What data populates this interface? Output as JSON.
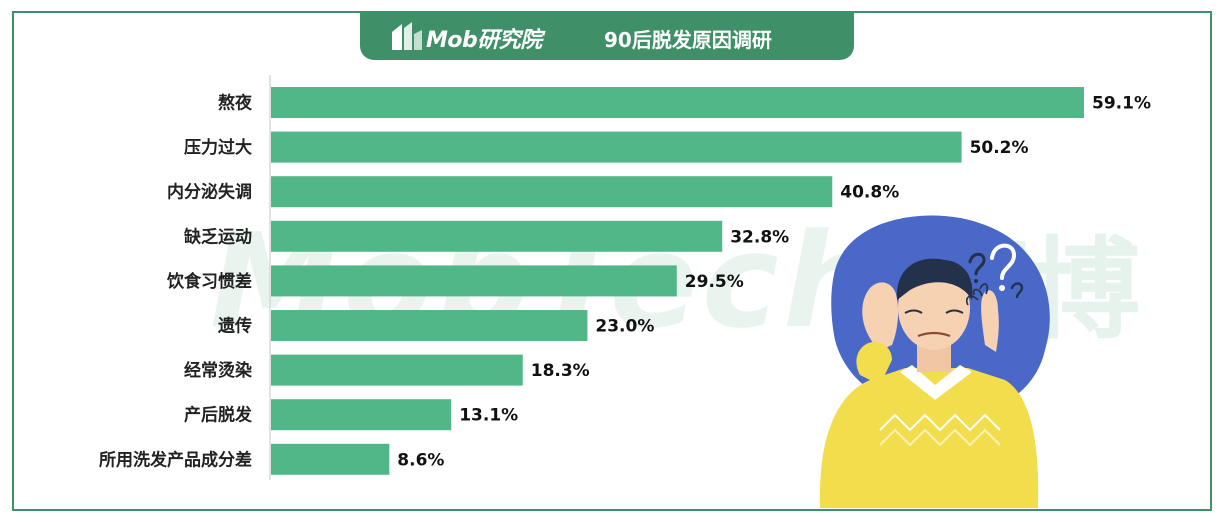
{
  "header": {
    "logo_text": "Mob研究院",
    "title": "90后脱发原因调研"
  },
  "watermark": {
    "latin": "MobTech",
    "cjk": "袤博"
  },
  "colors": {
    "bar": "#52b788",
    "frame": "#3f8f68",
    "title_bg": "#3f8f68"
  },
  "chart_data": {
    "type": "bar",
    "orientation": "horizontal",
    "title": "90后脱发原因调研",
    "categories": [
      "熬夜",
      "压力过大",
      "内分泌失调",
      "缺乏运动",
      "饮食习惯差",
      "遗传",
      "经常烫染",
      "产后脱发",
      "所用洗发产品成分差"
    ],
    "values": [
      59.1,
      50.2,
      40.8,
      32.8,
      29.5,
      23.0,
      18.3,
      13.1,
      8.6
    ],
    "value_labels": [
      "59.1%",
      "50.2%",
      "40.8%",
      "32.8%",
      "29.5%",
      "23.0%",
      "18.3%",
      "13.1%",
      "8.6%"
    ],
    "unit": "%",
    "xlim": [
      0,
      59.1
    ],
    "grid": false,
    "legend": "none"
  }
}
